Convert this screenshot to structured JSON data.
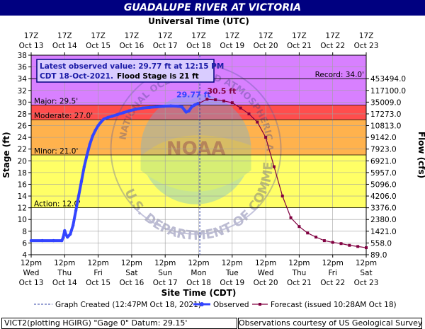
{
  "header": {
    "title": "GUADALUPE RIVER AT VICTORIA"
  },
  "chart_data": {
    "type": "line",
    "title": "GUADALUPE RIVER AT VICTORIA",
    "top_axis_label": "Universal Time (UTC)",
    "xlabel": "Site Time (CDT)",
    "ylabel": "Stage (ft)",
    "ylabel_right": "Flow (cfs)",
    "ylim": [
      4,
      38
    ],
    "xlim_hours": [
      0,
      240
    ],
    "y_ticks": [
      4,
      6,
      8,
      10,
      12,
      14,
      16,
      18,
      20,
      22,
      24,
      26,
      28,
      30,
      32,
      34,
      36,
      38
    ],
    "x_ticks_bottom": [
      {
        "h": 0,
        "l1": "12pm",
        "l2": "Wed",
        "l3": "Oct 13"
      },
      {
        "h": 24,
        "l1": "12pm",
        "l2": "Thu",
        "l3": "Oct 14"
      },
      {
        "h": 48,
        "l1": "12pm",
        "l2": "Fri",
        "l3": "Oct 15"
      },
      {
        "h": 72,
        "l1": "12pm",
        "l2": "Sat",
        "l3": "Oct 16"
      },
      {
        "h": 96,
        "l1": "12pm",
        "l2": "Sun",
        "l3": "Oct 17"
      },
      {
        "h": 120,
        "l1": "12pm",
        "l2": "Mon",
        "l3": "Oct 18"
      },
      {
        "h": 144,
        "l1": "12pm",
        "l2": "Tue",
        "l3": "Oct 19"
      },
      {
        "h": 168,
        "l1": "12pm",
        "l2": "Wed",
        "l3": "Oct 20"
      },
      {
        "h": 192,
        "l1": "12pm",
        "l2": "Thu",
        "l3": "Oct 21"
      },
      {
        "h": 216,
        "l1": "12pm",
        "l2": "Fri",
        "l3": "Oct 22"
      },
      {
        "h": 240,
        "l1": "12pm",
        "l2": "Sat",
        "l3": "Oct 23"
      }
    ],
    "x_ticks_top": [
      {
        "h": 0,
        "l1": "17Z",
        "l2": "Oct 13"
      },
      {
        "h": 24,
        "l1": "17Z",
        "l2": "Oct 14"
      },
      {
        "h": 48,
        "l1": "17Z",
        "l2": "Oct 15"
      },
      {
        "h": 72,
        "l1": "17Z",
        "l2": "Oct 16"
      },
      {
        "h": 96,
        "l1": "17Z",
        "l2": "Oct 17"
      },
      {
        "h": 120,
        "l1": "17Z",
        "l2": "Oct 18"
      },
      {
        "h": 144,
        "l1": "17Z",
        "l2": "Oct 19"
      },
      {
        "h": 168,
        "l1": "17Z",
        "l2": "Oct 20"
      },
      {
        "h": 192,
        "l1": "17Z",
        "l2": "Oct 21"
      },
      {
        "h": 216,
        "l1": "17Z",
        "l2": "Oct 22"
      },
      {
        "h": 240,
        "l1": "17Z",
        "l2": "Oct 23"
      }
    ],
    "flow_ticks": [
      {
        "y": 4,
        "l": "89.0"
      },
      {
        "y": 6,
        "l": "558.0"
      },
      {
        "y": 8,
        "l": "1421.0"
      },
      {
        "y": 10,
        "l": "2380.0"
      },
      {
        "y": 12,
        "l": "3376.0"
      },
      {
        "y": 14,
        "l": "4206.0"
      },
      {
        "y": 16,
        "l": "5096.0"
      },
      {
        "y": 18,
        "l": "5957.0"
      },
      {
        "y": 20,
        "l": "6921.0"
      },
      {
        "y": 22,
        "l": "7923.0"
      },
      {
        "y": 24,
        "l": "9142.0"
      },
      {
        "y": 26,
        "l": "10813.0"
      },
      {
        "y": 28,
        "l": "17273.0"
      },
      {
        "y": 30,
        "l": "35009.0"
      },
      {
        "y": 32,
        "l": "117100.0"
      },
      {
        "y": 34,
        "l": "453494.0"
      }
    ],
    "bands": [
      {
        "name": "normal",
        "from": 4,
        "to": 12,
        "color": "#ffffff"
      },
      {
        "name": "action",
        "from": 12,
        "to": 21,
        "color": "#ffff66"
      },
      {
        "name": "minor",
        "from": 21,
        "to": 27,
        "color": "#ffb24d"
      },
      {
        "name": "moderate",
        "from": 27,
        "to": 29.5,
        "color": "#ff4d4d"
      },
      {
        "name": "major",
        "from": 29.5,
        "to": 38,
        "color": "#d880ff"
      }
    ],
    "thresholds": [
      {
        "label": "Action: 12.0'",
        "value": 12,
        "side": "left"
      },
      {
        "label": "Minor: 21.0'",
        "value": 21,
        "side": "left"
      },
      {
        "label": "Moderate: 27.0'",
        "value": 27,
        "side": "left"
      },
      {
        "label": "Major: 29.5'",
        "value": 29.5,
        "side": "left"
      },
      {
        "label": "Record: 34.0'",
        "value": 34,
        "side": "right"
      }
    ],
    "graph_created_hour": 120.8,
    "observed": {
      "name": "Observed",
      "color": "#3344ff",
      "points": [
        [
          0,
          6.4
        ],
        [
          8,
          6.4
        ],
        [
          16,
          6.4
        ],
        [
          22,
          6.4
        ],
        [
          23,
          7.0
        ],
        [
          24,
          8.1
        ],
        [
          25,
          7.4
        ],
        [
          26,
          7.0
        ],
        [
          28,
          7.5
        ],
        [
          30,
          9.0
        ],
        [
          32,
          11.5
        ],
        [
          34,
          14.0
        ],
        [
          36,
          16.5
        ],
        [
          38,
          19.0
        ],
        [
          40,
          21.0
        ],
        [
          42,
          22.8
        ],
        [
          44,
          24.2
        ],
        [
          46,
          25.2
        ],
        [
          48,
          26.0
        ],
        [
          50,
          26.6
        ],
        [
          52,
          27.1
        ],
        [
          55,
          27.4
        ],
        [
          58,
          27.6
        ],
        [
          62,
          27.9
        ],
        [
          66,
          28.2
        ],
        [
          70,
          28.5
        ],
        [
          75,
          28.8
        ],
        [
          80,
          29.0
        ],
        [
          85,
          29.1
        ],
        [
          90,
          29.2
        ],
        [
          95,
          29.3
        ],
        [
          100,
          29.35
        ],
        [
          105,
          29.3
        ],
        [
          108,
          29.2
        ],
        [
          110,
          28.6
        ],
        [
          111,
          28.3
        ],
        [
          113,
          28.5
        ],
        [
          115,
          29.2
        ],
        [
          117,
          29.5
        ],
        [
          119.5,
          29.77
        ]
      ]
    },
    "forecast": {
      "name": "Forecast (issued 10:28AM Oct 18)",
      "color": "#800040",
      "points": [
        [
          120,
          29.77
        ],
        [
          126,
          30.5
        ],
        [
          132,
          30.4
        ],
        [
          138,
          30.2
        ],
        [
          144,
          29.9
        ],
        [
          150,
          29.0
        ],
        [
          156,
          28.0
        ],
        [
          162,
          26.6
        ],
        [
          168,
          24.0
        ],
        [
          174,
          19.0
        ],
        [
          180,
          14.0
        ],
        [
          186,
          10.3
        ],
        [
          192,
          8.8
        ],
        [
          198,
          7.7
        ],
        [
          204,
          7.0
        ],
        [
          210,
          6.4
        ],
        [
          216,
          6.1
        ],
        [
          222,
          5.9
        ],
        [
          228,
          5.6
        ],
        [
          234,
          5.4
        ],
        [
          240,
          5.2
        ]
      ]
    },
    "annotations": [
      {
        "text": "29.77 ft",
        "h": 104,
        "y": 30.8,
        "color": "#3344ff"
      },
      {
        "text": "30.5 ft",
        "h": 126,
        "y": 31.4,
        "color": "#800040"
      }
    ],
    "info_box": {
      "line1": "Latest observed value: 29.77 ft at 12:15 PM",
      "line2": "CDT 18-Oct-2021.",
      "line2b": "Flood Stage is 21 ft"
    },
    "watermark": [
      "NATIONAL OCEANIC AND ATMOSPHERIC ADMINISTRATION",
      "U.S. DEPARTMENT OF COMMERCE",
      "NOAA"
    ],
    "legend": {
      "graph_created": "Graph Created (12:47PM Oct 18, 2021)",
      "observed": "Observed",
      "forecast": "Forecast (issued 10:28AM Oct 18)"
    }
  },
  "footer": {
    "left": "VICT2(plotting HGIRG) \"Gage 0\" Datum: 29.15'",
    "right": "Observations courtesy of US Geological Survey"
  }
}
